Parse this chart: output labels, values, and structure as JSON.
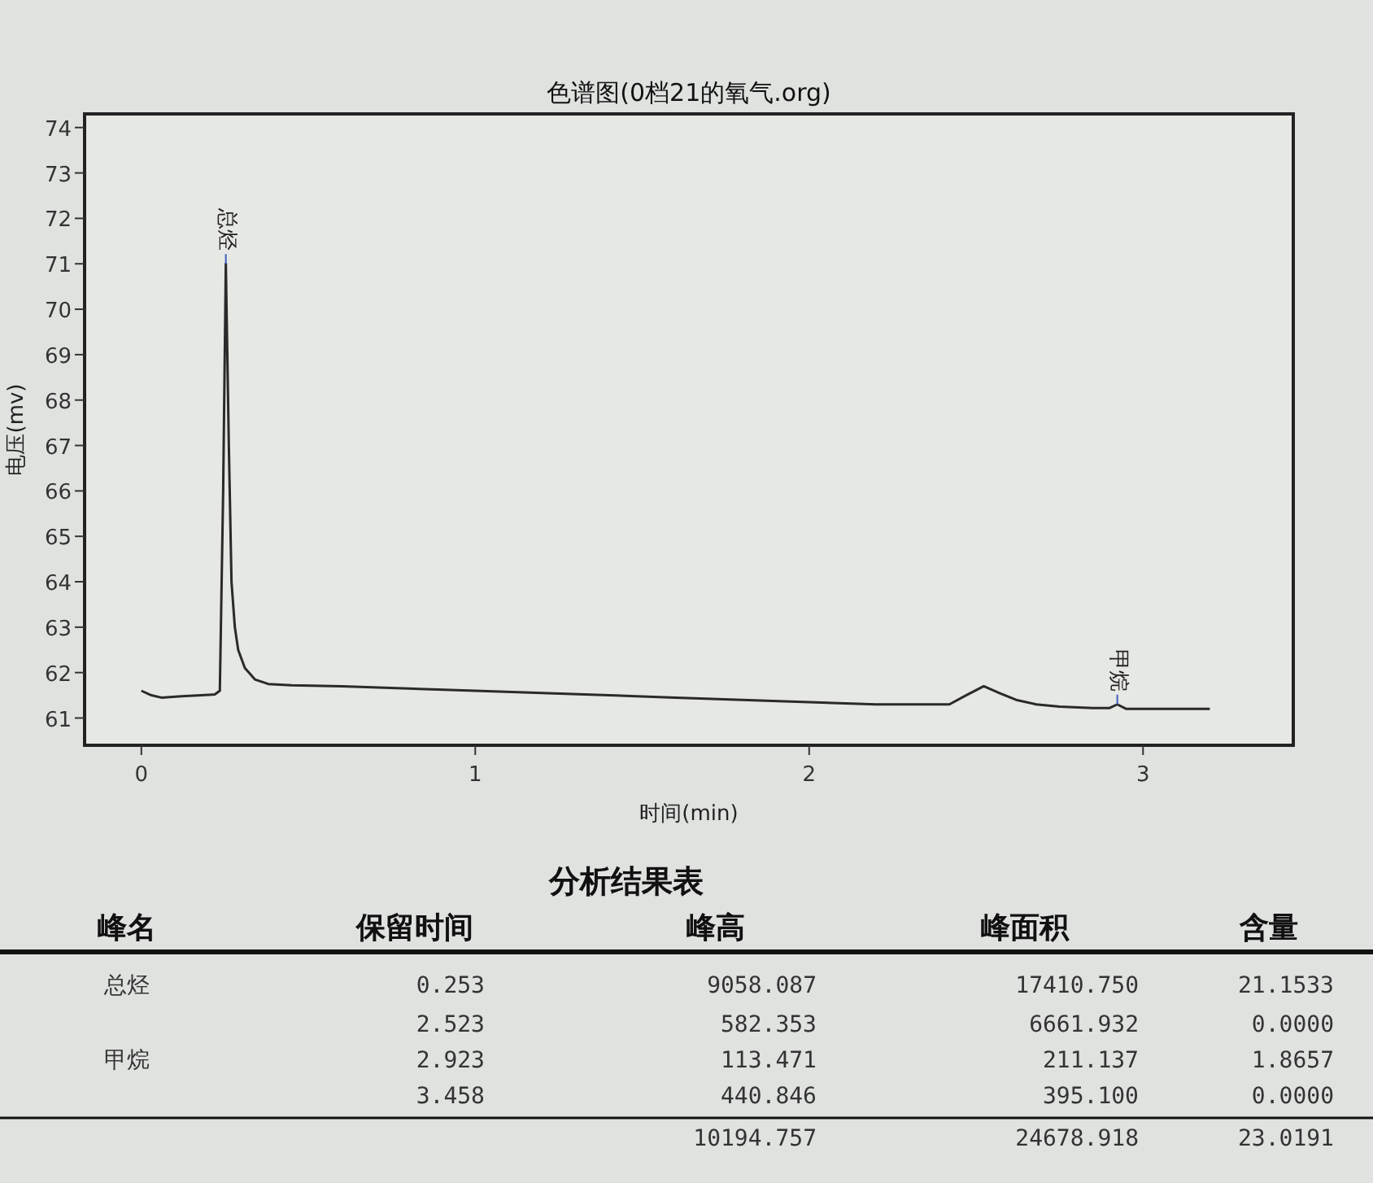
{
  "chart_data": {
    "type": "line",
    "title": "色谱图(0档21的氧气.org)",
    "xlabel": "时间(min)",
    "ylabel": "电压(mv)",
    "xlim": [
      -0.17,
      3.45
    ],
    "ylim": [
      60.4,
      74.3
    ],
    "xticks": [
      0,
      1,
      2,
      3
    ],
    "yticks": [
      61,
      62,
      63,
      64,
      65,
      66,
      67,
      68,
      69,
      70,
      71,
      72,
      73,
      74
    ],
    "series": [
      {
        "color": "#2a2a2a",
        "x": [
          0,
          0.03,
          0.06,
          0.12,
          0.18,
          0.22,
          0.235,
          0.245,
          0.253,
          0.262,
          0.27,
          0.28,
          0.29,
          0.31,
          0.34,
          0.38,
          0.45,
          0.6,
          0.8,
          1.0,
          1.2,
          1.4,
          1.6,
          1.8,
          2.0,
          2.2,
          2.35,
          2.42,
          2.47,
          2.523,
          2.57,
          2.62,
          2.68,
          2.75,
          2.85,
          2.9,
          2.923,
          2.95,
          3.0,
          3.1,
          3.2
        ],
        "values": [
          61.6,
          61.5,
          61.45,
          61.48,
          61.5,
          61.52,
          61.6,
          66,
          71,
          67,
          64,
          63,
          62.5,
          62.1,
          61.85,
          61.75,
          61.72,
          61.7,
          61.65,
          61.6,
          61.55,
          61.5,
          61.45,
          61.4,
          61.35,
          61.3,
          61.3,
          61.3,
          61.5,
          61.7,
          61.55,
          61.4,
          61.3,
          61.25,
          61.22,
          61.22,
          61.3,
          61.2,
          61.2,
          61.2,
          61.2
        ]
      }
    ],
    "annotations": [
      {
        "text": "总烃",
        "x": 0.253,
        "y": 71
      },
      {
        "text": "甲烷",
        "x": 2.923,
        "y": 61.3
      },
      "分析结果表",
      "峰名",
      "保留时间",
      "峰高",
      "峰面积",
      "含量",
      "总烃",
      "0.253",
      "9058.087",
      "17410.750",
      "21.1533",
      null,
      "2.523",
      "582.353",
      "6661.932",
      "0.0000",
      "甲烷",
      "2.923",
      "113.471",
      "211.137",
      "1.8657",
      null,
      "3.458",
      "440.846",
      "395.100",
      "0.0000",
      null,
      null,
      "10194.757",
      "24678.918",
      "23.0191"
    ]
  }
}
